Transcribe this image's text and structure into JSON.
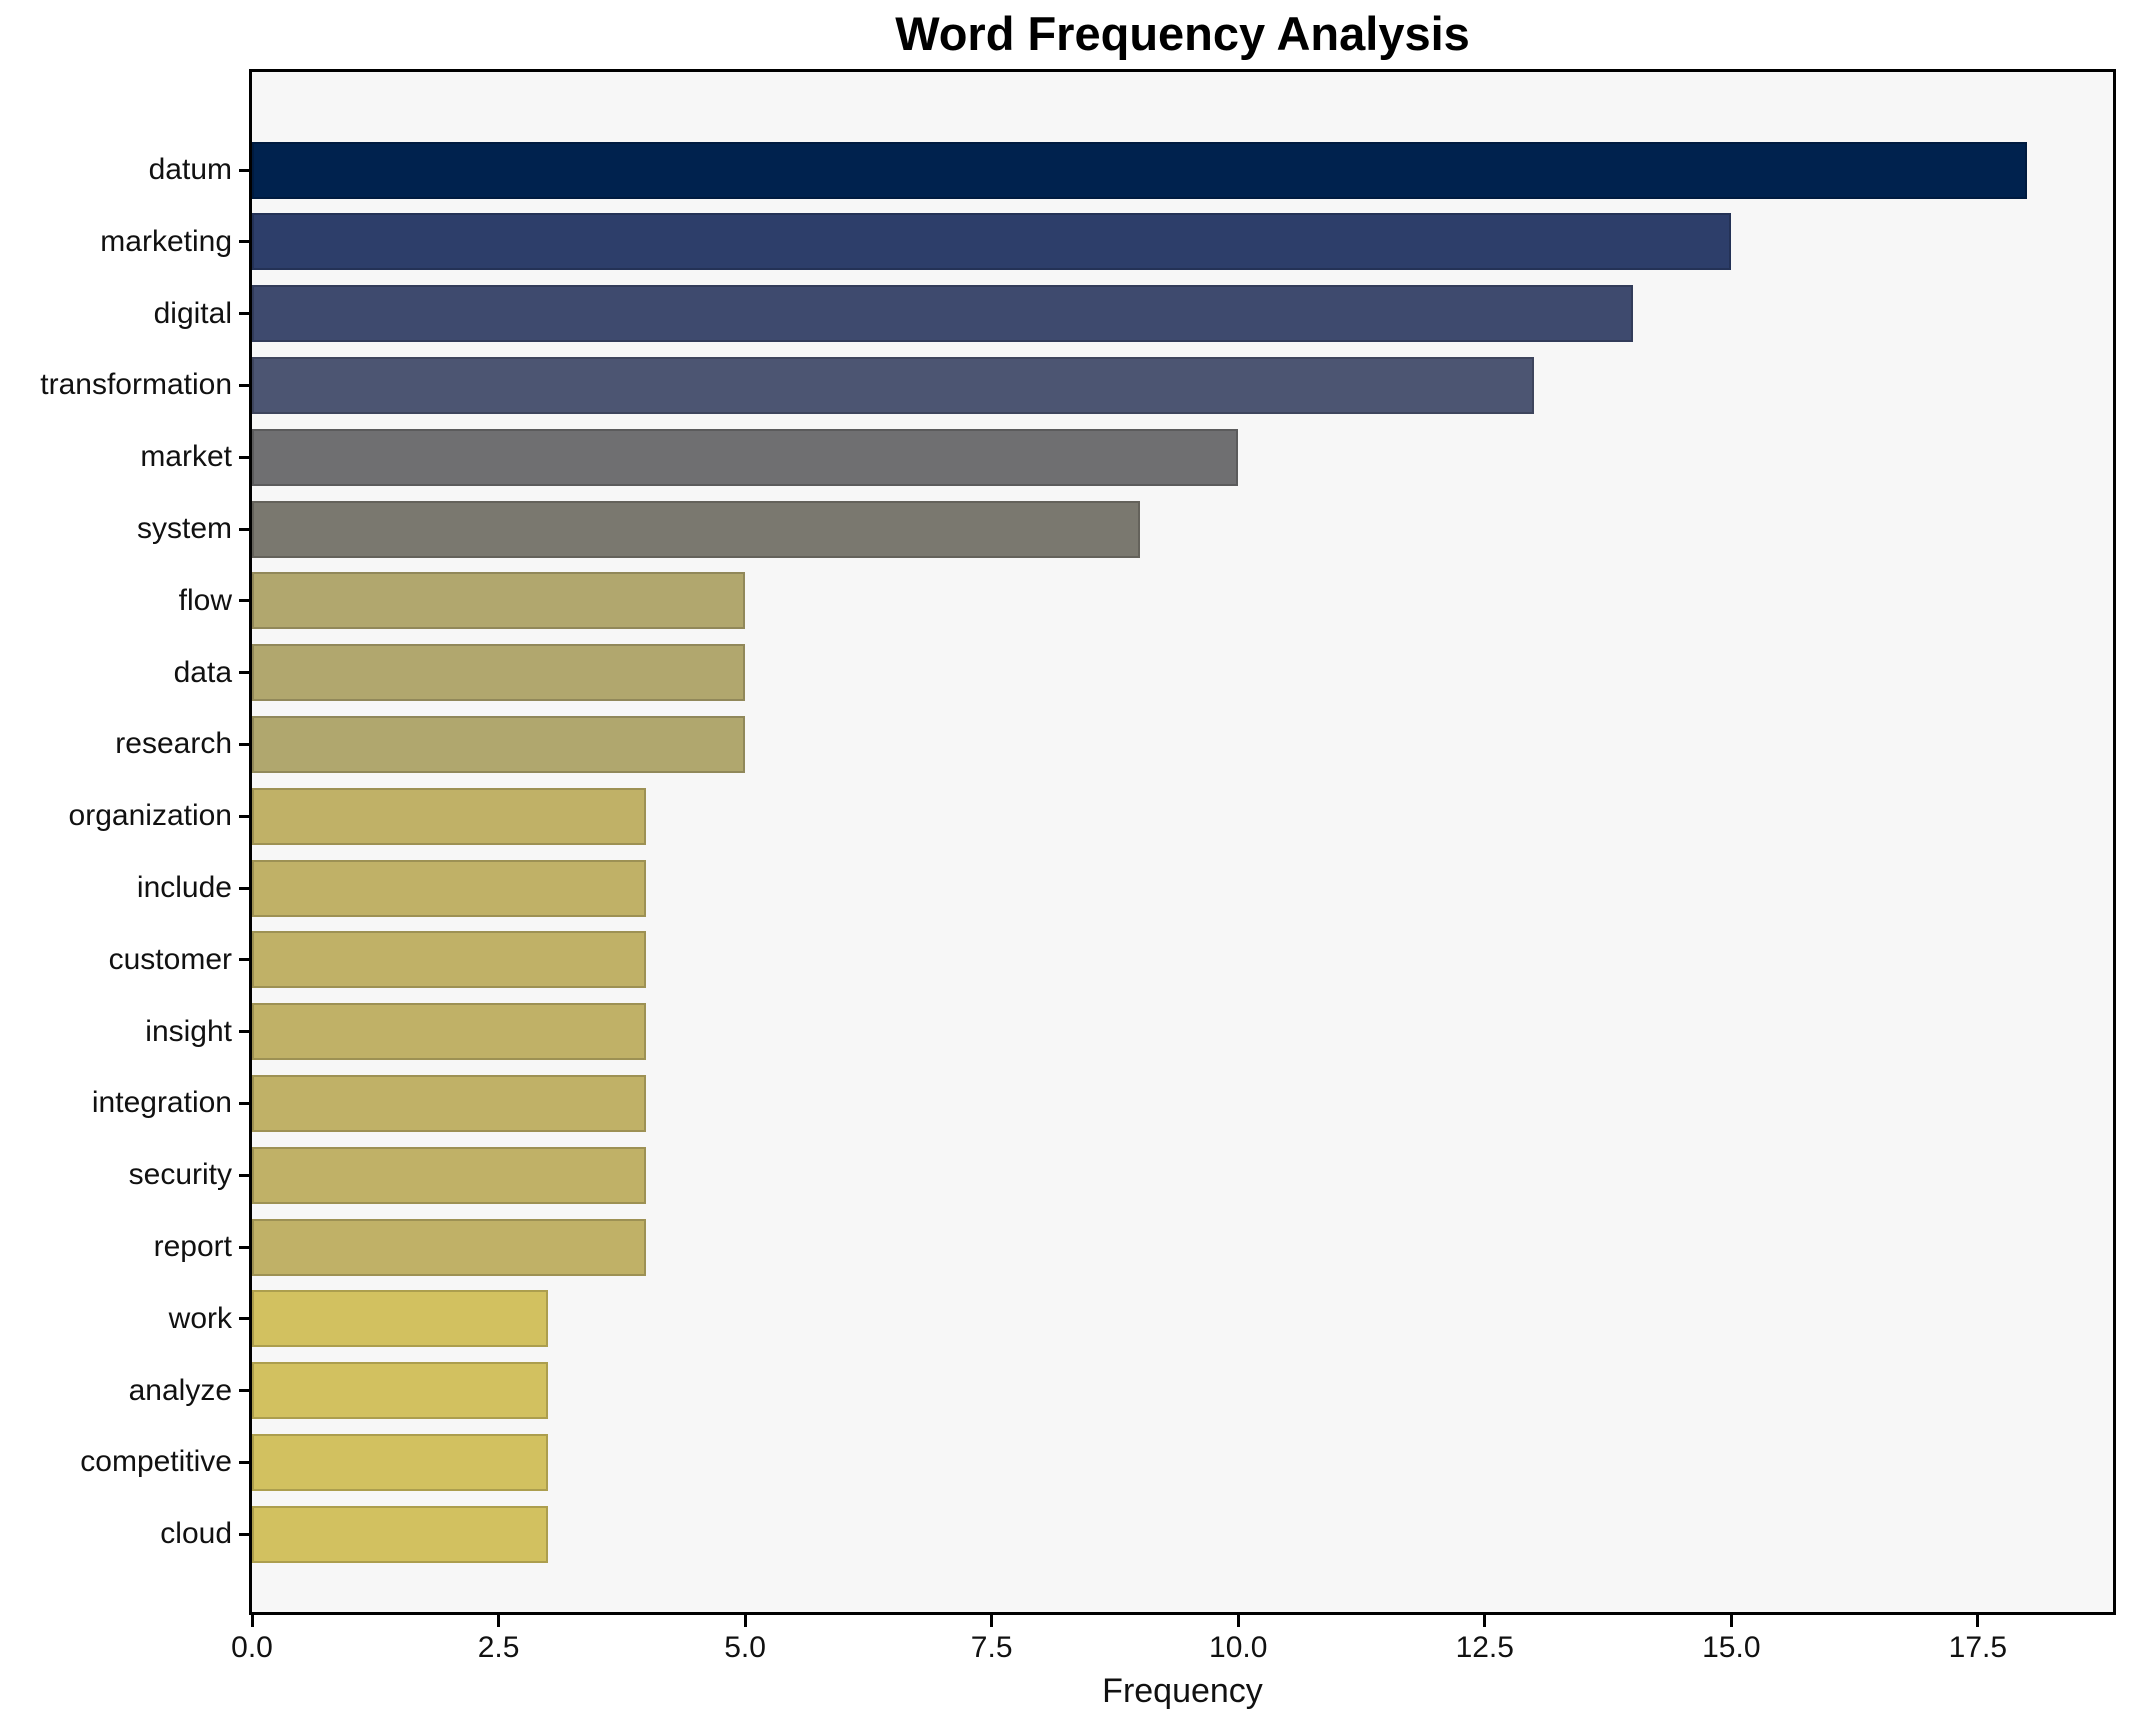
{
  "chart_data": {
    "type": "bar",
    "orientation": "horizontal",
    "title": "Word Frequency Analysis",
    "xlabel": "Frequency",
    "ylabel": "",
    "categories": [
      "datum",
      "marketing",
      "digital",
      "transformation",
      "market",
      "system",
      "flow",
      "data",
      "research",
      "organization",
      "include",
      "customer",
      "insight",
      "integration",
      "security",
      "report",
      "work",
      "analyze",
      "competitive",
      "cloud"
    ],
    "values": [
      18,
      15,
      14,
      13,
      10,
      9,
      5,
      5,
      5,
      4,
      4,
      4,
      4,
      4,
      4,
      4,
      3,
      3,
      3,
      3
    ],
    "bar_colors": [
      "#00224e",
      "#2d3e6a",
      "#3e4a6e",
      "#4c5572",
      "#6f6f71",
      "#7a786f",
      "#b1a76e",
      "#b1a76e",
      "#b0a76e",
      "#c0b167",
      "#c0b167",
      "#c0b167",
      "#c0b167",
      "#c0b167",
      "#c0b167",
      "#c0b167",
      "#d2c160",
      "#d2c160",
      "#d2c160",
      "#d2c160"
    ],
    "xticks": [
      0.0,
      2.5,
      5.0,
      7.5,
      10.0,
      12.5,
      15.0,
      17.5
    ],
    "xtick_labels": [
      "0.0",
      "2.5",
      "5.0",
      "7.5",
      "10.0",
      "12.5",
      "15.0",
      "17.5"
    ],
    "xlim": [
      0,
      18.87
    ],
    "grid": false,
    "legend": null,
    "plot_background": "#f7f7f7",
    "figure_background": "#ffffff",
    "text_color": "#111111"
  }
}
